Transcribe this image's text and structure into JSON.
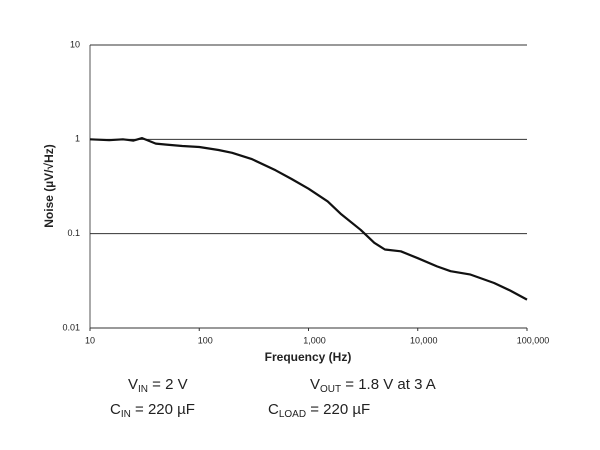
{
  "chart_data": {
    "type": "line",
    "xlabel": "Frequency (Hz)",
    "ylabel": "Noise (µV/√Hz)",
    "xscale": "log",
    "yscale": "log",
    "grid": true,
    "xlim": [
      10,
      100000
    ],
    "ylim": [
      0.01,
      10
    ],
    "xticks": [
      10,
      100,
      {
        "value": 1000,
        "label": "1,000"
      },
      {
        "value": 10000,
        "label": "10,000"
      },
      {
        "value": 100000,
        "label": "100,000"
      }
    ],
    "yticks": [
      0.01,
      0.1,
      1,
      10
    ],
    "x": [
      10,
      15,
      20,
      25,
      30,
      40,
      50,
      70,
      100,
      150,
      200,
      300,
      500,
      700,
      1000,
      1500,
      2000,
      3000,
      4000,
      5000,
      7000,
      10000,
      15000,
      20000,
      30000,
      50000,
      70000,
      100000
    ],
    "series": [
      {
        "color": "#111111",
        "values": [
          1.0,
          0.98,
          1.0,
          0.97,
          1.03,
          0.9,
          0.88,
          0.85,
          0.83,
          0.77,
          0.72,
          0.62,
          0.47,
          0.38,
          0.3,
          0.22,
          0.16,
          0.11,
          0.08,
          0.068,
          0.065,
          0.055,
          0.045,
          0.04,
          0.037,
          0.03,
          0.025,
          0.02
        ]
      }
    ],
    "annotations": [
      {
        "main": "V",
        "sub": "IN",
        "rest": " = 2 V"
      },
      {
        "main": "V",
        "sub": "OUT",
        "rest": " = 1.8 V at 3 A"
      },
      {
        "main": "C",
        "sub": "IN",
        "rest": " = 220 µF"
      },
      {
        "main": "C",
        "sub": "LOAD",
        "rest": " = 220 µF"
      }
    ]
  }
}
